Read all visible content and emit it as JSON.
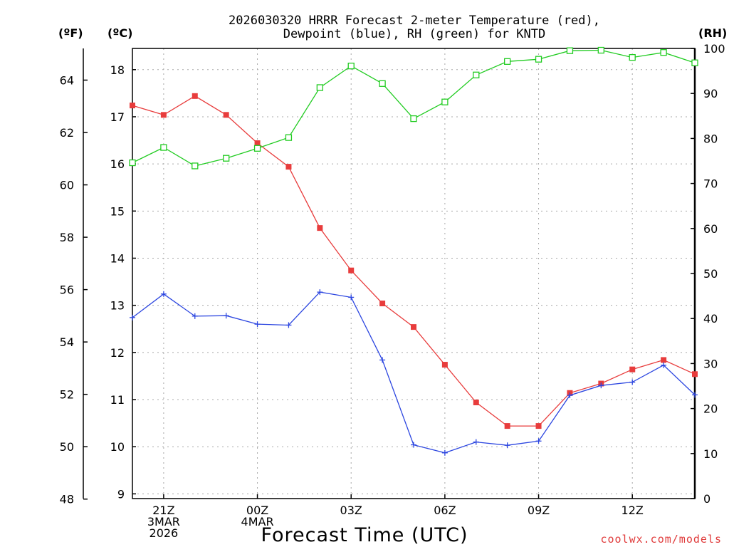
{
  "chart_data": {
    "type": "line",
    "title_lines": [
      "2026030320 HRRR Forecast 2-meter Temperature (red),",
      "Dewpoint (blue), RH (green) for KNTD"
    ],
    "xlabel": "Forecast Time (UTC)",
    "credit": "coolwx.com/models",
    "units": {
      "fahrenheit": "(ºF)",
      "celsius": "(ºC)",
      "rh": "(RH)"
    },
    "x_range_hours": [
      20,
      38
    ],
    "x_ticks": [
      {
        "hour": 21,
        "lines": [
          "21Z",
          "3MAR",
          "2026"
        ]
      },
      {
        "hour": 24,
        "lines": [
          "00Z",
          "4MAR"
        ]
      },
      {
        "hour": 27,
        "lines": [
          "03Z"
        ]
      },
      {
        "hour": 30,
        "lines": [
          "06Z"
        ]
      },
      {
        "hour": 33,
        "lines": [
          "09Z"
        ]
      },
      {
        "hour": 36,
        "lines": [
          "12Z"
        ]
      }
    ],
    "y_celsius": {
      "range": [
        8.9,
        18.45
      ],
      "ticks": [
        9,
        10,
        11,
        12,
        13,
        14,
        15,
        16,
        17,
        18
      ]
    },
    "y_fahrenheit": {
      "ticks": [
        48,
        50,
        52,
        54,
        56,
        58,
        60,
        62,
        64
      ]
    },
    "y_rh": {
      "range": [
        0,
        100
      ],
      "ticks": [
        0,
        10,
        20,
        30,
        40,
        50,
        60,
        70,
        80,
        90,
        100
      ]
    },
    "colors": {
      "temperature": "#e83c3c",
      "dewpoint": "#2c46e0",
      "rh": "#22cc22",
      "grid": "#a8a8a8"
    },
    "hours": [
      20,
      21,
      22,
      23,
      24,
      25,
      26,
      27,
      28,
      29,
      30,
      31,
      32,
      33,
      34,
      35,
      36,
      37,
      38
    ],
    "series": [
      {
        "name": "Temperature",
        "axis": "celsius",
        "marker": "filled-square",
        "values": [
          17.24,
          17.04,
          17.44,
          17.04,
          16.44,
          15.94,
          14.64,
          13.74,
          13.04,
          12.54,
          11.74,
          10.94,
          10.44,
          10.44,
          11.14,
          11.34,
          11.64,
          11.84,
          11.54
        ]
      },
      {
        "name": "Dewpoint",
        "axis": "celsius",
        "marker": "plus",
        "values": [
          12.74,
          13.24,
          12.77,
          12.78,
          12.6,
          12.58,
          13.28,
          13.17,
          11.84,
          10.04,
          9.87,
          10.1,
          10.03,
          10.12,
          11.09,
          11.3,
          11.37,
          11.73,
          11.1
        ]
      },
      {
        "name": "RH",
        "axis": "rh",
        "marker": "open-square",
        "values": [
          74.6,
          78.0,
          73.9,
          75.6,
          77.8,
          80.2,
          91.3,
          96.1,
          92.2,
          84.4,
          88.1,
          94.1,
          97.1,
          97.6,
          99.5,
          99.6,
          98.0,
          99.1,
          96.8
        ]
      }
    ]
  }
}
